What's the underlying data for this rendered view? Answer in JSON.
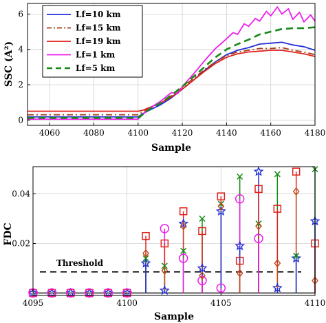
{
  "chart_data": [
    {
      "type": "line",
      "ylabel": "SSC (A²)",
      "xlabel": "Sample",
      "xlim": [
        4050,
        4180
      ],
      "ylim": [
        -0.3,
        6.6
      ],
      "xticks": [
        4060,
        4080,
        4100,
        4120,
        4140,
        4160,
        4180
      ],
      "xtick_labels": [
        "4060",
        "4080",
        "4100",
        "4120",
        "4140",
        "4160",
        "4180"
      ],
      "yticks": [
        0,
        2,
        4,
        6
      ],
      "ytick_labels": [
        "0",
        "2",
        "4",
        "6"
      ],
      "grid": true,
      "legend_position": "top-left",
      "series": [
        {
          "name": "Lf=10 km",
          "color": "#1f2fd6",
          "dash": "solid",
          "points": [
            [
              4050,
              0.18
            ],
            [
              4100,
              0.18
            ],
            [
              4102,
              0.35
            ],
            [
              4105,
              0.55
            ],
            [
              4110,
              0.85
            ],
            [
              4115,
              1.25
            ],
            [
              4120,
              1.75
            ],
            [
              4125,
              2.25
            ],
            [
              4130,
              2.8
            ],
            [
              4135,
              3.3
            ],
            [
              4140,
              3.7
            ],
            [
              4145,
              3.95
            ],
            [
              4150,
              4.1
            ],
            [
              4155,
              4.3
            ],
            [
              4160,
              4.35
            ],
            [
              4165,
              4.4
            ],
            [
              4170,
              4.25
            ],
            [
              4175,
              4.15
            ],
            [
              4180,
              3.95
            ]
          ]
        },
        {
          "name": "Lf=15 km",
          "color": "#a83a14",
          "dash": "dashdot",
          "points": [
            [
              4050,
              0.3
            ],
            [
              4100,
              0.3
            ],
            [
              4102,
              0.45
            ],
            [
              4105,
              0.65
            ],
            [
              4110,
              0.95
            ],
            [
              4115,
              1.35
            ],
            [
              4120,
              1.85
            ],
            [
              4125,
              2.35
            ],
            [
              4130,
              2.85
            ],
            [
              4135,
              3.3
            ],
            [
              4140,
              3.65
            ],
            [
              4145,
              3.85
            ],
            [
              4150,
              3.95
            ],
            [
              4155,
              4.05
            ],
            [
              4160,
              4.05
            ],
            [
              4165,
              4.1
            ],
            [
              4170,
              3.95
            ],
            [
              4175,
              3.85
            ],
            [
              4180,
              3.7
            ]
          ]
        },
        {
          "name": "Lf=19 km",
          "color": "#e0221c",
          "dash": "solid",
          "points": [
            [
              4050,
              0.5
            ],
            [
              4100,
              0.5
            ],
            [
              4102,
              0.55
            ],
            [
              4105,
              0.7
            ],
            [
              4110,
              0.95
            ],
            [
              4115,
              1.3
            ],
            [
              4120,
              1.75
            ],
            [
              4125,
              2.25
            ],
            [
              4130,
              2.75
            ],
            [
              4135,
              3.2
            ],
            [
              4140,
              3.55
            ],
            [
              4145,
              3.75
            ],
            [
              4150,
              3.85
            ],
            [
              4155,
              3.9
            ],
            [
              4160,
              3.95
            ],
            [
              4165,
              3.95
            ],
            [
              4170,
              3.85
            ],
            [
              4175,
              3.75
            ],
            [
              4180,
              3.6
            ]
          ]
        },
        {
          "name": "Lf=1 km",
          "color": "#ee1cee",
          "dash": "solid",
          "points": [
            [
              4050,
              0.05
            ],
            [
              4100,
              0.05
            ],
            [
              4102,
              0.3
            ],
            [
              4105,
              0.65
            ],
            [
              4110,
              1.05
            ],
            [
              4115,
              1.55
            ],
            [
              4118,
              1.5
            ],
            [
              4120,
              1.9
            ],
            [
              4125,
              2.6
            ],
            [
              4130,
              3.35
            ],
            [
              4135,
              4.05
            ],
            [
              4140,
              4.6
            ],
            [
              4143,
              4.95
            ],
            [
              4145,
              4.85
            ],
            [
              4148,
              5.45
            ],
            [
              4150,
              5.3
            ],
            [
              4153,
              5.75
            ],
            [
              4155,
              5.6
            ],
            [
              4158,
              6.15
            ],
            [
              4160,
              5.9
            ],
            [
              4163,
              6.4
            ],
            [
              4165,
              6.0
            ],
            [
              4168,
              6.3
            ],
            [
              4170,
              5.7
            ],
            [
              4173,
              6.1
            ],
            [
              4175,
              5.55
            ],
            [
              4178,
              5.95
            ],
            [
              4180,
              5.6
            ]
          ]
        },
        {
          "name": "Lf=5 km",
          "color": "#138a13",
          "dash": "dash",
          "points": [
            [
              4050,
              0.12
            ],
            [
              4100,
              0.12
            ],
            [
              4102,
              0.3
            ],
            [
              4105,
              0.6
            ],
            [
              4110,
              0.95
            ],
            [
              4115,
              1.4
            ],
            [
              4120,
              1.9
            ],
            [
              4125,
              2.45
            ],
            [
              4130,
              3.0
            ],
            [
              4135,
              3.55
            ],
            [
              4140,
              4.0
            ],
            [
              4145,
              4.3
            ],
            [
              4150,
              4.55
            ],
            [
              4155,
              4.85
            ],
            [
              4160,
              5.0
            ],
            [
              4165,
              5.15
            ],
            [
              4170,
              5.2
            ],
            [
              4175,
              5.2
            ],
            [
              4180,
              5.25
            ]
          ]
        }
      ]
    },
    {
      "type": "scatter",
      "ylabel": "FDC",
      "xlabel": "Sample",
      "xlim": [
        4095,
        4110
      ],
      "ylim": [
        -0.001,
        0.051
      ],
      "xticks": [
        4095,
        4100,
        4105,
        4110
      ],
      "xtick_labels": [
        "4095",
        "4100",
        "4105",
        "4110"
      ],
      "yticks": [
        0.02,
        0.04
      ],
      "ytick_labels": [
        "0.02",
        "0.04"
      ],
      "grid": true,
      "threshold": {
        "label": "Threshold",
        "value": 0.0085
      },
      "series": [
        {
          "name": "blue-star",
          "color": "#1f2fd6",
          "marker": "star",
          "x": [
            4095,
            4096,
            4097,
            4098,
            4099,
            4100,
            4101,
            4102,
            4103,
            4104,
            4105,
            4106,
            4107,
            4108,
            4109,
            4110
          ],
          "y": [
            0,
            0,
            0,
            0,
            0,
            0,
            0.012,
            0.001,
            0.028,
            0.01,
            0.033,
            0.019,
            0.049,
            0.002,
            0.014,
            0.029
          ]
        },
        {
          "name": "green-x",
          "color": "#138a13",
          "marker": "x",
          "x": [
            4101,
            4102,
            4103,
            4104,
            4105,
            4106,
            4107,
            4108,
            4109,
            4110
          ],
          "y": [
            0.014,
            0.011,
            0.017,
            0.03,
            0.036,
            0.047,
            0.028,
            0.048,
            0.015,
            0.05
          ]
        },
        {
          "name": "red-square",
          "color": "#e0221c",
          "marker": "square",
          "x": [
            4095,
            4096,
            4097,
            4098,
            4099,
            4100,
            4101,
            4102,
            4103,
            4104,
            4105,
            4106,
            4107,
            4108,
            4109,
            4110
          ],
          "y": [
            0,
            0,
            0,
            0,
            0,
            0,
            0.023,
            0.02,
            0.033,
            0.025,
            0.039,
            0.013,
            0.042,
            0.034,
            0.049,
            0.02
          ]
        },
        {
          "name": "magenta-circle",
          "color": "#ee1cee",
          "marker": "circle",
          "x": [
            4095,
            4096,
            4097,
            4098,
            4099,
            4100,
            4102,
            4103,
            4104,
            4105,
            4106,
            4107
          ],
          "y": [
            0,
            0,
            0,
            0,
            0,
            0,
            0.026,
            0.014,
            0.005,
            0.002,
            0.038,
            0.022
          ]
        },
        {
          "name": "brown-diamond",
          "color": "#c04a1a",
          "marker": "diamond",
          "x": [
            4101,
            4102,
            4103,
            4104,
            4105,
            4106,
            4107,
            4108,
            4109,
            4110
          ],
          "y": [
            0.016,
            0.009,
            0.027,
            0.007,
            0.035,
            0.008,
            0.027,
            0.012,
            0.041,
            0.005
          ]
        }
      ]
    }
  ]
}
